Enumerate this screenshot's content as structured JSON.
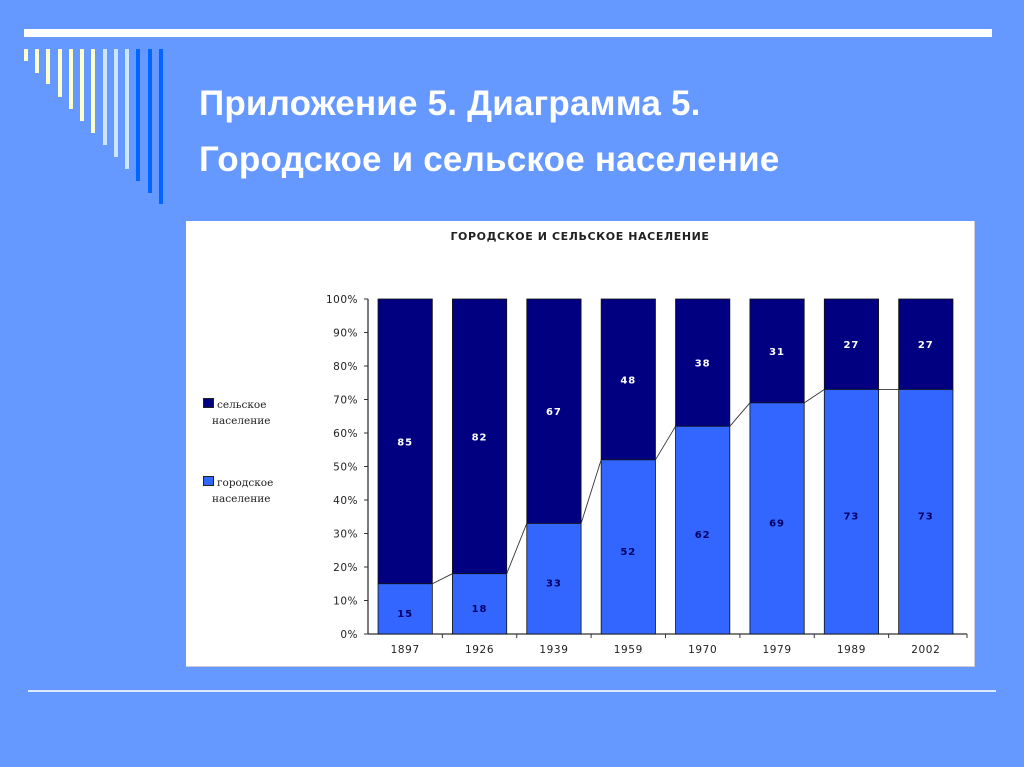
{
  "slide": {
    "title_line1": "Приложение 5. Диаграмма 5.",
    "title_line2": "Городское и сельское население",
    "background_color": "#6699ff"
  },
  "chart_data": {
    "type": "bar",
    "stacked": true,
    "percent_stacked": true,
    "title": "ГОРОДСКОЕ И СЕЛЬСКОЕ НАСЕЛЕНИЕ",
    "categories": [
      "1897",
      "1926",
      "1939",
      "1959",
      "1970",
      "1979",
      "1989",
      "2002"
    ],
    "series": [
      {
        "name": "городское население",
        "values": [
          15,
          18,
          33,
          52,
          62,
          69,
          73,
          73
        ],
        "color": "#3366ff"
      },
      {
        "name": "сельское население",
        "values": [
          85,
          82,
          67,
          48,
          38,
          31,
          27,
          27
        ],
        "color": "#000080"
      }
    ],
    "xlabel": "",
    "ylabel": "",
    "ylim": [
      0,
      100
    ],
    "yticks": [
      "0%",
      "10%",
      "20%",
      "30%",
      "40%",
      "50%",
      "60%",
      "70%",
      "80%",
      "90%",
      "100%"
    ],
    "grid": false,
    "legend_position": "left",
    "series_lines": true
  },
  "legend": {
    "rural_line1": "сельское",
    "rural_line2": "население",
    "urban_line1": "городское",
    "urban_line2": "население"
  }
}
